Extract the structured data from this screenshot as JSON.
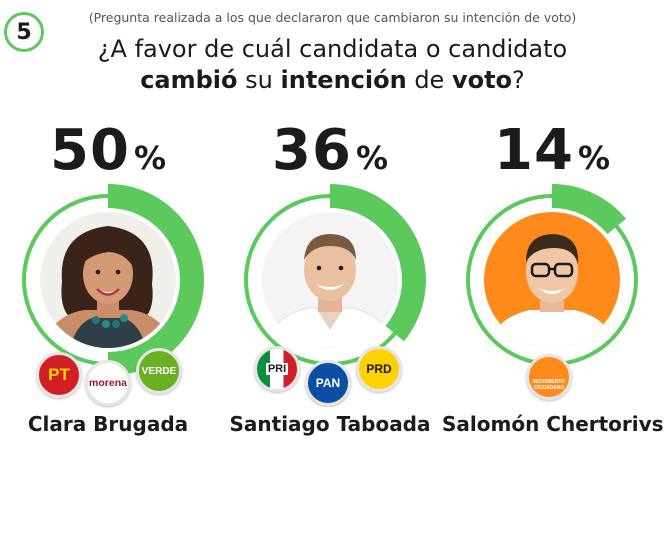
{
  "question_number": "5",
  "subtitle": "(Pregunta realizada a los que declararon que cambiaron su intención de voto)",
  "title": {
    "p1": "¿A favor de cuál candidata o candidato",
    "p2": "cambió",
    "p3": " su ",
    "p4": "intención",
    "p5": " de ",
    "p6": "voto",
    "p7": "?"
  },
  "colors": {
    "ring_green": "#5cc95c",
    "orange_bg": "#ff8a1c",
    "text": "#1b1b1b"
  },
  "chart_data": {
    "type": "pie",
    "title": "¿A favor de cuál candidata o candidato cambió su intención de voto?",
    "categories": [
      "Clara Brugada",
      "Santiago Taboada",
      "Salomón Chertorivski"
    ],
    "values": [
      50,
      36,
      14
    ],
    "unit": "%"
  },
  "candidates": [
    {
      "name": "Clara Brugada",
      "value": "50",
      "percent_sign": "%",
      "parties": [
        {
          "label": "PT",
          "icon": "pt-logo-icon"
        },
        {
          "label": "morena",
          "icon": "morena-logo-icon"
        },
        {
          "label": "VERDE",
          "icon": "verde-logo-icon"
        }
      ]
    },
    {
      "name": "Santiago Taboada",
      "value": "36",
      "percent_sign": "%",
      "parties": [
        {
          "label": "PRI",
          "icon": "pri-logo-icon"
        },
        {
          "label": "PAN",
          "icon": "pan-logo-icon"
        },
        {
          "label": "PRD",
          "icon": "prd-logo-icon"
        }
      ]
    },
    {
      "name": "Salomón Chertorivski",
      "value": "14",
      "percent_sign": "%",
      "parties": [
        {
          "label": "MOVIMIENTO CIUDADANO",
          "icon": "mc-logo-icon"
        }
      ]
    }
  ]
}
